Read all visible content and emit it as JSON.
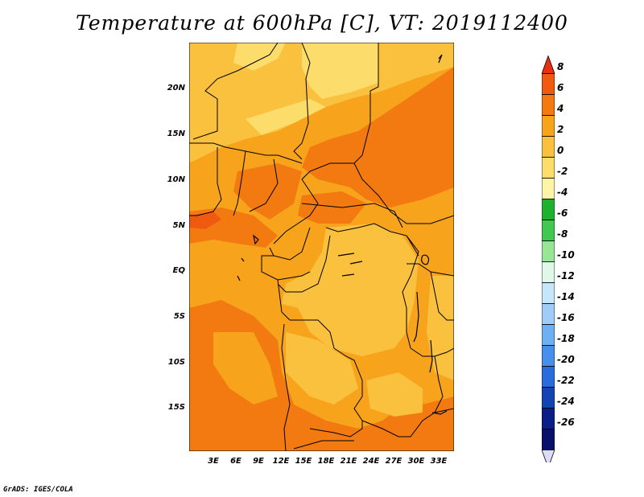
{
  "title": "Temperature at 600hPa [C], VT: 2019112400",
  "credit": "GrADS: IGES/COLA",
  "lat_labels": [
    "20N",
    "15N",
    "10N",
    "5N",
    "EQ",
    "5S",
    "10S",
    "15S"
  ],
  "lon_labels": [
    "3E",
    "6E",
    "9E",
    "12E",
    "15E",
    "18E",
    "21E",
    "24E",
    "27E",
    "30E",
    "33E"
  ],
  "colorbar": {
    "labels": [
      "8",
      "6",
      "4",
      "2",
      "0",
      "-2",
      "-4",
      "-6",
      "-8",
      "-10",
      "-12",
      "-14",
      "-16",
      "-18",
      "-20",
      "-22",
      "-24",
      "-26"
    ],
    "colors": [
      "#e83010",
      "#f05a10",
      "#f27a10",
      "#f7a31c",
      "#fac13e",
      "#fcdc6b",
      "#fef4a8",
      "#20b030",
      "#40c850",
      "#96e696",
      "#e0f8e8",
      "#c8e6fa",
      "#a0cdf8",
      "#6eb0f2",
      "#4690ec",
      "#2a6cdc",
      "#1444b4",
      "#0a1e88",
      "#08106a",
      "#dcdcf8"
    ]
  },
  "map_colors": {
    "c_m2": "#fcdc6b",
    "c_0": "#fac13e",
    "c_2": "#f7a31c",
    "c_4": "#f27a10",
    "c_6": "#f05a10"
  }
}
